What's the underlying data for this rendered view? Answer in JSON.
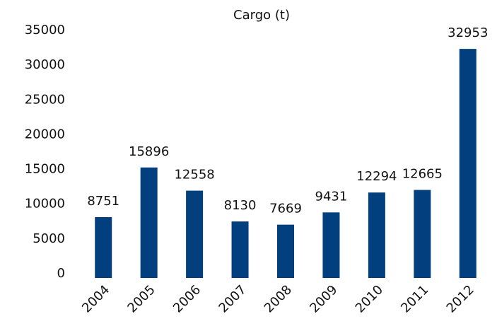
{
  "chart_data": {
    "type": "bar",
    "title": "Cargo (t)",
    "categories": [
      "2004",
      "2005",
      "2006",
      "2007",
      "2008",
      "2009",
      "2010",
      "2011",
      "2012"
    ],
    "values": [
      8751,
      15896,
      12558,
      8130,
      7669,
      9431,
      12294,
      12665,
      32953
    ],
    "color": "#023f7f",
    "ylim": [
      0,
      35000
    ],
    "yticks": [
      0,
      5000,
      10000,
      15000,
      20000,
      25000,
      30000,
      35000
    ],
    "grid": false
  }
}
